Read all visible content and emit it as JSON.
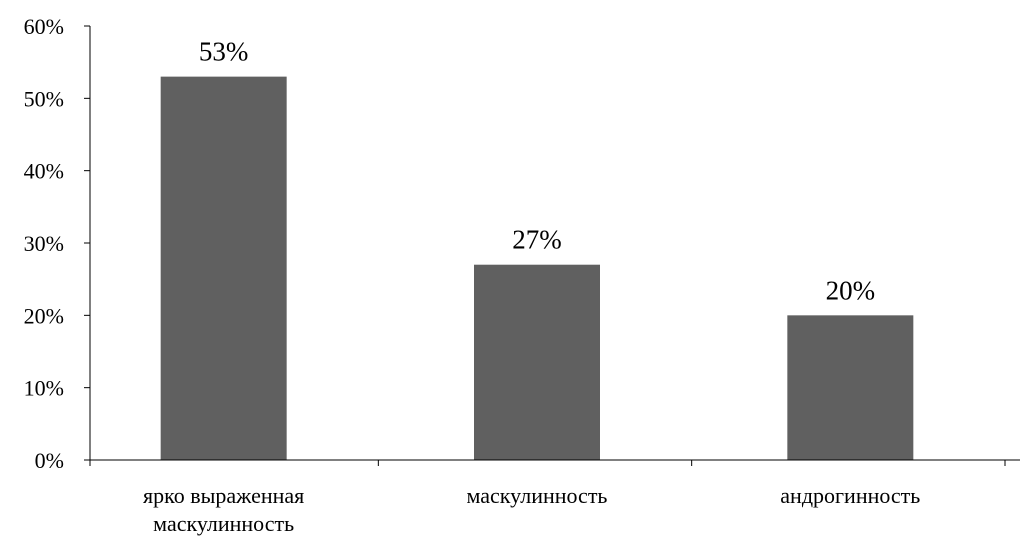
{
  "chart_data": {
    "type": "bar",
    "categories": [
      [
        "ярко выраженная",
        "маскулинность"
      ],
      [
        "маскулинность"
      ],
      [
        "андрогинность"
      ]
    ],
    "values": [
      53,
      27,
      20
    ],
    "data_labels": [
      "53%",
      "27%",
      "20%"
    ],
    "ylim": [
      0,
      60
    ],
    "yticks": [
      0,
      10,
      20,
      30,
      40,
      50,
      60
    ],
    "ytick_labels": [
      "0%",
      "10%",
      "20%",
      "30%",
      "40%",
      "50%",
      "60%"
    ],
    "bar_color": "#606060",
    "grid": false,
    "legend": "none"
  }
}
